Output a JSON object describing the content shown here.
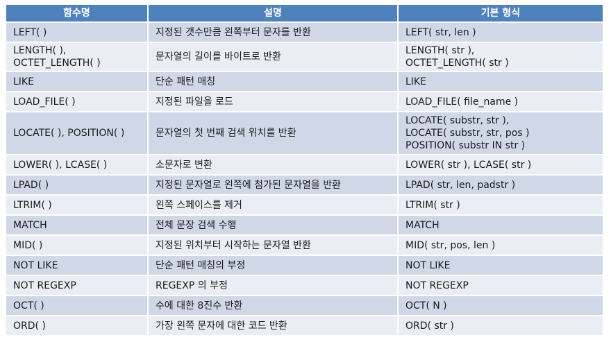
{
  "header": {
    "col1": "함수명",
    "col2": "설명",
    "col3": "기본 형식"
  },
  "rows": [
    {
      "name": [
        "LEFT( )"
      ],
      "desc": "지정된 갯수만큼 왼쪽부터 문자를 반환",
      "syntax": [
        "LEFT( str, len )"
      ]
    },
    {
      "name": [
        "LENGTH( ),",
        "OCTET_LENGTH( )"
      ],
      "desc": "문자열의 길이를 바이트로 반환",
      "syntax": [
        "LENGTH( str ),",
        "OCTET_LENGTH( str )"
      ]
    },
    {
      "name": [
        "LIKE"
      ],
      "desc": "단순 패턴 매칭",
      "syntax": [
        "LIKE"
      ]
    },
    {
      "name": [
        "LOAD_FILE( )"
      ],
      "desc": "지정된 파일을 로드",
      "syntax": [
        "LOAD_FILE( file_name )"
      ]
    },
    {
      "name": [
        "LOCATE( ), POSITION( )"
      ],
      "desc": "문자열의 첫 번째 검색 위치를 반환",
      "syntax": [
        "LOCATE( substr, str ),",
        "LOCATE( substr, str, pos )",
        "POSITION( substr IN str )"
      ]
    },
    {
      "name": [
        "LOWER( ), LCASE( )"
      ],
      "desc": "소문자로 변환",
      "syntax": [
        "LOWER( str ), LCASE( str )"
      ]
    },
    {
      "name": [
        "LPAD( )"
      ],
      "desc": "지정된 문자열로 왼쪽에 첨가된 문자열을 반환",
      "syntax": [
        "LPAD( str, len, padstr )"
      ]
    },
    {
      "name": [
        "LTRIM( )"
      ],
      "desc": "왼쪽 스페이스를 제거",
      "syntax": [
        "LTRIM( str )"
      ]
    },
    {
      "name": [
        "MATCH"
      ],
      "desc": "전체 문장 검색 수행",
      "syntax": [
        "MATCH"
      ]
    },
    {
      "name": [
        "MID( )"
      ],
      "desc": "지정된 위치부터 시작하는 문자열 반환",
      "syntax": [
        "MID( str, pos, len )"
      ]
    },
    {
      "name": [
        "NOT LIKE"
      ],
      "desc": "단순 패턴 매칭의 부정",
      "syntax": [
        "NOT LIKE"
      ]
    },
    {
      "name": [
        "NOT REGEXP"
      ],
      "desc": "REGEXP 의 부정",
      "syntax": [
        "NOT REGEXP"
      ]
    },
    {
      "name": [
        "OCT( )"
      ],
      "desc": "수에 대한 8진수 반환",
      "syntax": [
        "OCT( N )"
      ]
    },
    {
      "name": [
        "ORD( )"
      ],
      "desc": "가장 왼쪽 문자에 대한 코드 반환",
      "syntax": [
        "ORD( str )"
      ]
    }
  ],
  "colors": {
    "header_bg": "#4f81bd",
    "row_odd": "#d0d8e8",
    "row_even": "#e9edf4"
  }
}
